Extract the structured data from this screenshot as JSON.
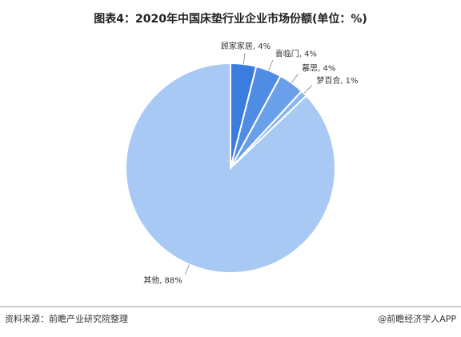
{
  "chart_data": {
    "type": "pie",
    "title": "图表4：2020年中国床垫行业企业市场份额(单位：%)",
    "categories": [
      "顾家家居",
      "喜临门",
      "慕思",
      "梦百合",
      "其他"
    ],
    "values": [
      4,
      4,
      4,
      1,
      88
    ],
    "value_labels": [
      "顾家家居, 4%",
      "喜临门, 4%",
      "慕思, 4%",
      "梦百合, 1%",
      "其他, 88%"
    ],
    "colors": [
      "#3a7ddf",
      "#4f8de5",
      "#6aa0ea",
      "#8ab5ef",
      "#a9c9f5"
    ]
  },
  "footer": {
    "source": "资料来源：前瞻产业研究院整理",
    "brand": "@前瞻经济学人APP"
  }
}
